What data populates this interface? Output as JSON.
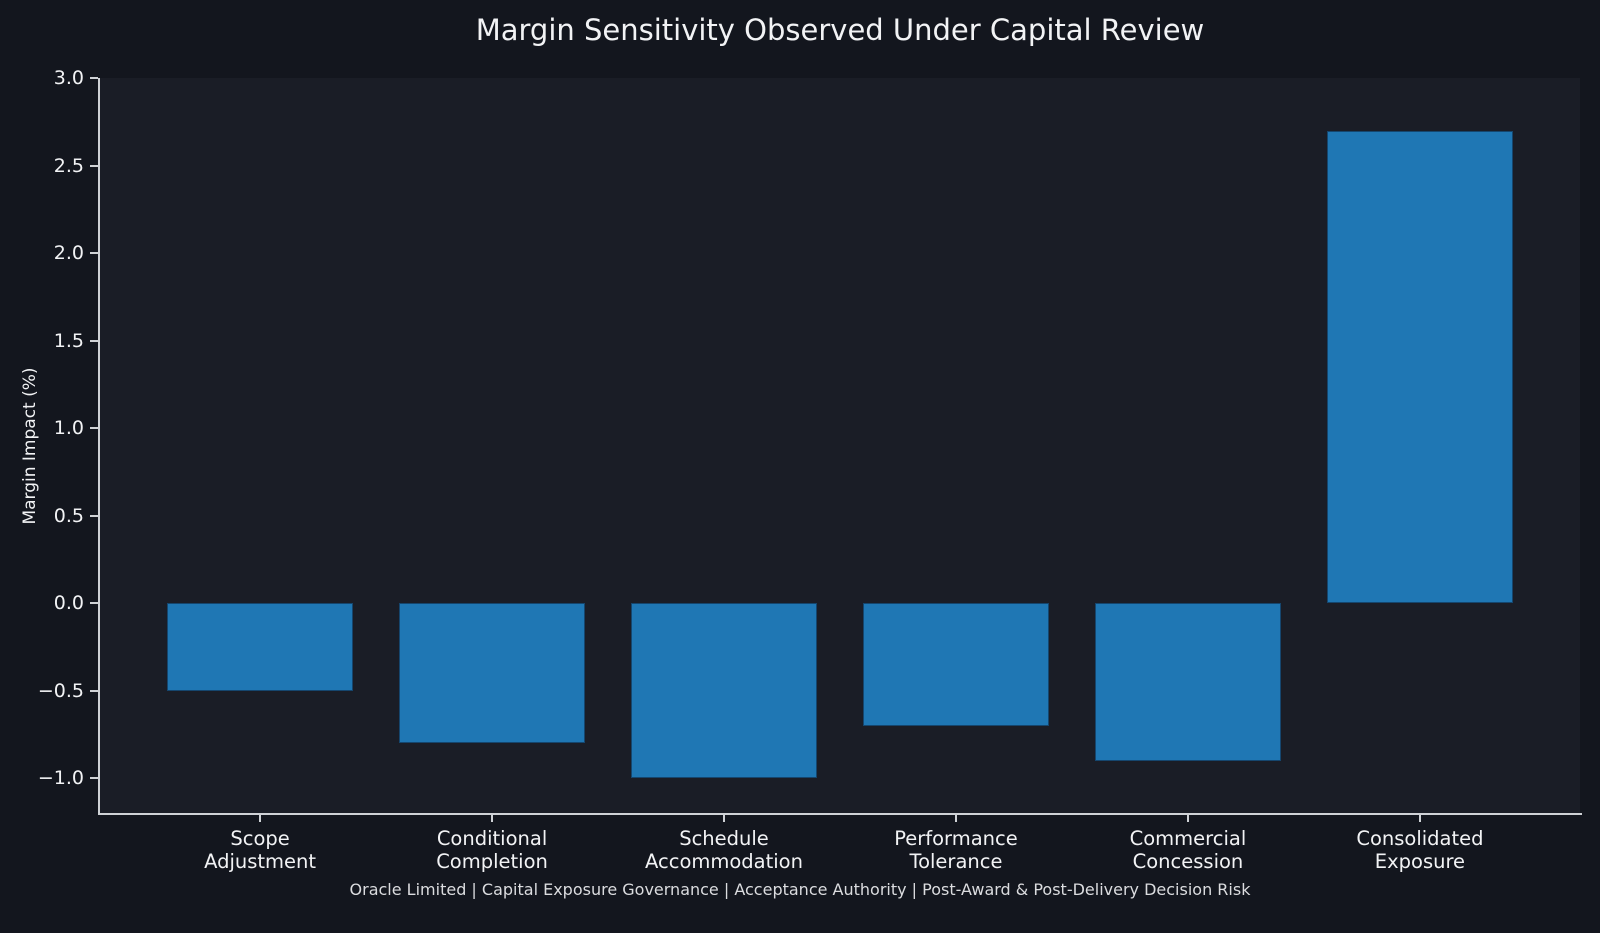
{
  "figure": {
    "title": "Margin Sensitivity Observed Under Capital Review",
    "footer": "Oracle Limited | Capital Exposure Governance | Acceptance Authority | Post-Award & Post-Delivery Decision Risk"
  },
  "colors": {
    "figure_bg": "#13161e",
    "plot_bg": "#1a1d26",
    "bar_fill": "#1f77b4",
    "bar_edge": "#15466e",
    "spine": "#cfd2d6",
    "text": "#f2f3f5",
    "muted_text": "#dbdcdf"
  },
  "chart_data": {
    "type": "bar",
    "title": "Margin Sensitivity Observed Under Capital Review",
    "xlabel": "",
    "ylabel": "Margin Impact (%)",
    "categories": [
      "Scope\nAdjustment",
      "Conditional\nCompletion",
      "Schedule\nAccommodation",
      "Performance\nTolerance",
      "Commercial\nConcession",
      "Consolidated\nExposure"
    ],
    "values": [
      -0.5,
      -0.8,
      -1.0,
      -0.7,
      -0.9,
      2.7
    ],
    "yticks": [
      3.0,
      2.5,
      2.0,
      1.5,
      1.0,
      0.5,
      0.0,
      -0.5,
      -1.0
    ],
    "ylim": [
      -1.2,
      3.0
    ],
    "xlim": [
      -0.69,
      5.69
    ],
    "bar_width": 0.8,
    "grid": false,
    "legend": "none",
    "spines": [
      "left",
      "bottom"
    ]
  }
}
